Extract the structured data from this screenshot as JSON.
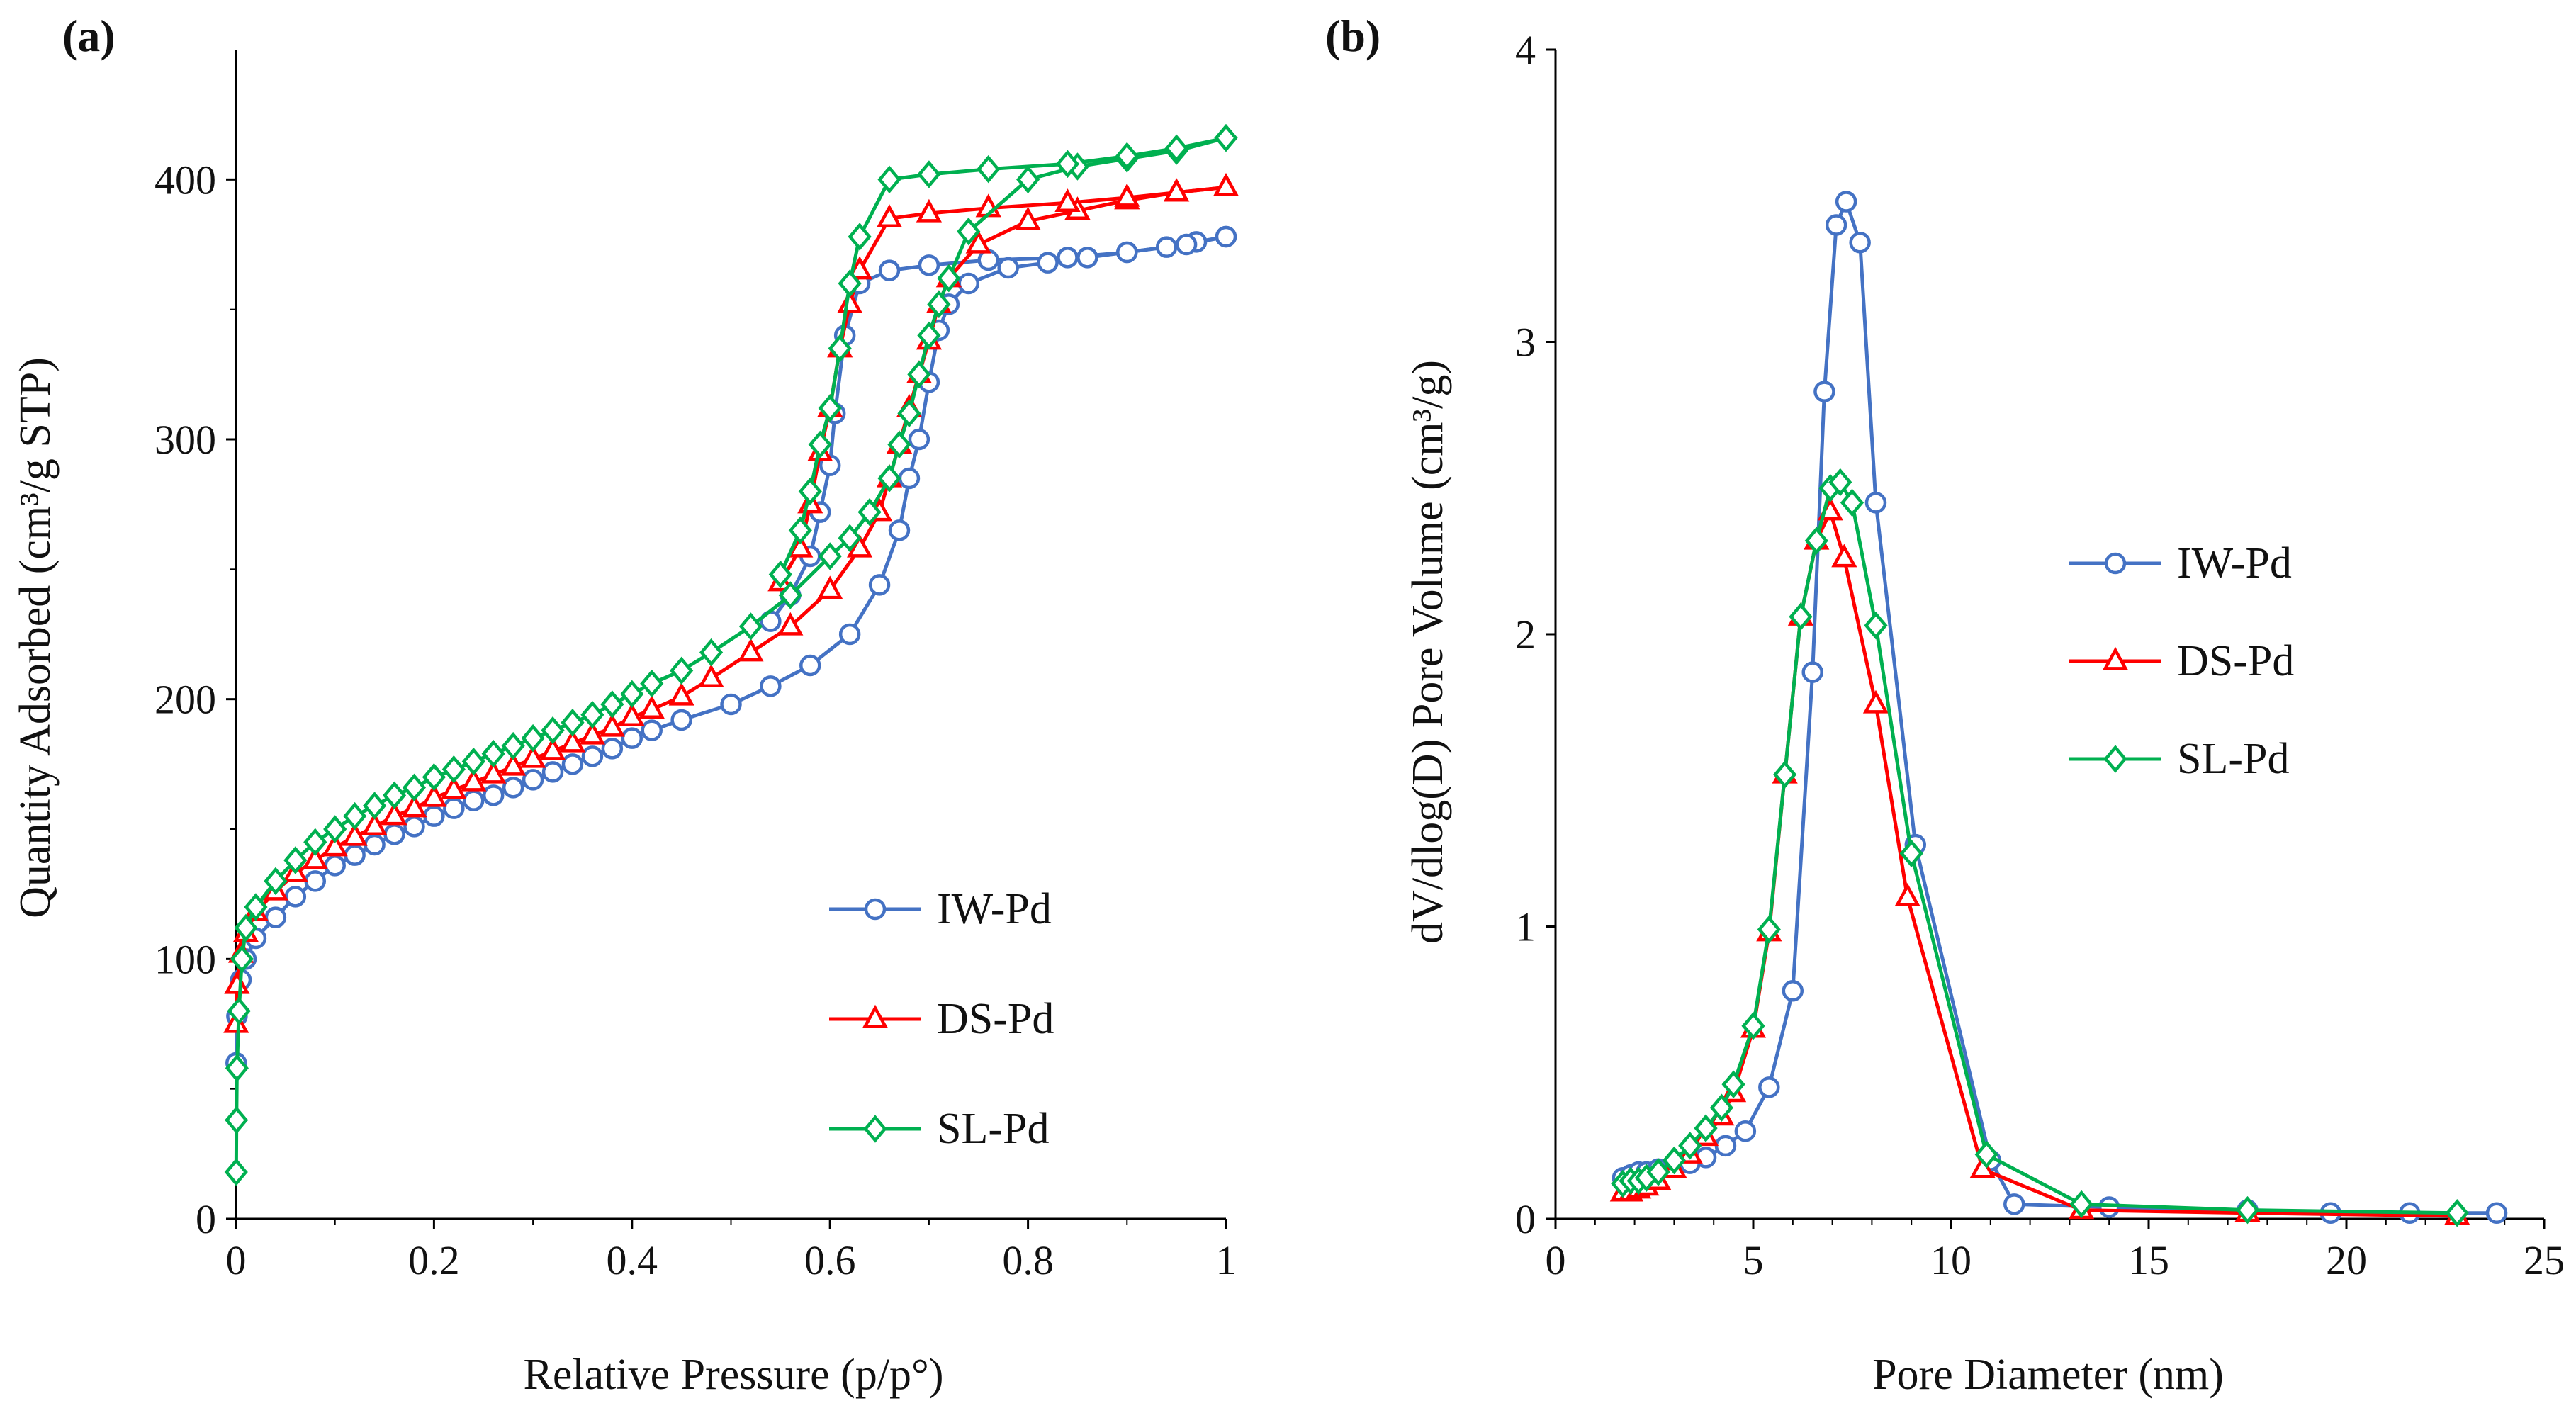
{
  "colors": {
    "IW": "#4472C4",
    "DS": "#FF0000",
    "SL": "#00B050",
    "axis": "#000000"
  },
  "chart_data": [
    {
      "type": "line",
      "panel_label": "(a)",
      "title": "",
      "xlabel": "Relative Pressure (p/p°)",
      "ylabel": "Quantity Adsorbed (cm³/g STP)",
      "xlim": [
        0,
        1
      ],
      "ylim": [
        0,
        450
      ],
      "xticks": [
        0,
        0.2,
        0.4,
        0.6,
        0.8,
        1
      ],
      "xtick_labels": [
        "0",
        "0.2",
        "0.4",
        "0.6",
        "0.8",
        "1"
      ],
      "yticks": [
        0,
        100,
        200,
        300,
        400
      ],
      "ytick_labels": [
        "0",
        "100",
        "200",
        "300",
        "400"
      ],
      "legend_position": "bottom-right",
      "series": [
        {
          "name": "IW-Pd",
          "color_key": "IW",
          "marker": "circle",
          "adsorption": [
            [
              0.0002,
              60
            ],
            [
              0.001,
              78
            ],
            [
              0.005,
              92
            ],
            [
              0.01,
              100
            ],
            [
              0.02,
              108
            ],
            [
              0.04,
              116
            ],
            [
              0.06,
              124
            ],
            [
              0.08,
              130
            ],
            [
              0.1,
              136
            ],
            [
              0.12,
              140
            ],
            [
              0.14,
              144
            ],
            [
              0.16,
              148
            ],
            [
              0.18,
              151
            ],
            [
              0.2,
              155
            ],
            [
              0.22,
              158
            ],
            [
              0.24,
              161
            ],
            [
              0.26,
              163
            ],
            [
              0.28,
              166
            ],
            [
              0.3,
              169
            ],
            [
              0.32,
              172
            ],
            [
              0.34,
              175
            ],
            [
              0.36,
              178
            ],
            [
              0.38,
              181
            ],
            [
              0.4,
              185
            ],
            [
              0.42,
              188
            ],
            [
              0.45,
              192
            ],
            [
              0.5,
              198
            ],
            [
              0.54,
              205
            ],
            [
              0.58,
              213
            ],
            [
              0.62,
              225
            ],
            [
              0.65,
              244
            ],
            [
              0.67,
              265
            ],
            [
              0.68,
              285
            ],
            [
              0.69,
              300
            ],
            [
              0.7,
              322
            ],
            [
              0.71,
              342
            ],
            [
              0.72,
              352
            ],
            [
              0.74,
              360
            ],
            [
              0.78,
              366
            ],
            [
              0.82,
              368
            ],
            [
              0.86,
              370
            ],
            [
              0.9,
              372
            ],
            [
              0.94,
              374
            ],
            [
              0.97,
              376
            ],
            [
              1.0,
              378
            ]
          ],
          "desorption": [
            [
              1.0,
              378
            ],
            [
              0.96,
              375
            ],
            [
              0.9,
              372
            ],
            [
              0.84,
              370
            ],
            [
              0.76,
              369
            ],
            [
              0.7,
              367
            ],
            [
              0.66,
              365
            ],
            [
              0.63,
              360
            ],
            [
              0.615,
              340
            ],
            [
              0.605,
              310
            ],
            [
              0.6,
              290
            ],
            [
              0.59,
              272
            ],
            [
              0.58,
              255
            ],
            [
              0.56,
              240
            ],
            [
              0.54,
              230
            ]
          ]
        },
        {
          "name": "DS-Pd",
          "color_key": "DS",
          "marker": "triangle",
          "adsorption": [
            [
              0.0002,
              75
            ],
            [
              0.001,
              90
            ],
            [
              0.005,
              102
            ],
            [
              0.01,
              110
            ],
            [
              0.02,
              118
            ],
            [
              0.04,
              126
            ],
            [
              0.06,
              133
            ],
            [
              0.08,
              138
            ],
            [
              0.1,
              143
            ],
            [
              0.12,
              147
            ],
            [
              0.14,
              151
            ],
            [
              0.16,
              155
            ],
            [
              0.18,
              158
            ],
            [
              0.2,
              162
            ],
            [
              0.22,
              165
            ],
            [
              0.24,
              168
            ],
            [
              0.26,
              171
            ],
            [
              0.28,
              174
            ],
            [
              0.3,
              177
            ],
            [
              0.32,
              180
            ],
            [
              0.34,
              183
            ],
            [
              0.36,
              186
            ],
            [
              0.38,
              189
            ],
            [
              0.4,
              193
            ],
            [
              0.42,
              196
            ],
            [
              0.45,
              201
            ],
            [
              0.48,
              208
            ],
            [
              0.52,
              218
            ],
            [
              0.56,
              228
            ],
            [
              0.6,
              242
            ],
            [
              0.63,
              258
            ],
            [
              0.65,
              272
            ],
            [
              0.66,
              285
            ],
            [
              0.67,
              298
            ],
            [
              0.68,
              312
            ],
            [
              0.69,
              325
            ],
            [
              0.7,
              338
            ],
            [
              0.71,
              352
            ],
            [
              0.72,
              362
            ],
            [
              0.75,
              375
            ],
            [
              0.8,
              384
            ],
            [
              0.85,
              388
            ],
            [
              0.9,
              392
            ],
            [
              0.95,
              395
            ],
            [
              1.0,
              397
            ]
          ],
          "desorption": [
            [
              1.0,
              397
            ],
            [
              0.95,
              395
            ],
            [
              0.9,
              393
            ],
            [
              0.84,
              391
            ],
            [
              0.76,
              389
            ],
            [
              0.7,
              387
            ],
            [
              0.66,
              385
            ],
            [
              0.63,
              365
            ],
            [
              0.62,
              352
            ],
            [
              0.61,
              335
            ],
            [
              0.6,
              312
            ],
            [
              0.59,
              295
            ],
            [
              0.58,
              275
            ],
            [
              0.57,
              258
            ],
            [
              0.55,
              245
            ]
          ]
        },
        {
          "name": "SL-Pd",
          "color_key": "SL",
          "marker": "diamond",
          "adsorption": [
            [
              0.0002,
              18
            ],
            [
              0.0005,
              38
            ],
            [
              0.001,
              58
            ],
            [
              0.003,
              80
            ],
            [
              0.006,
              100
            ],
            [
              0.01,
              112
            ],
            [
              0.02,
              120
            ],
            [
              0.04,
              130
            ],
            [
              0.06,
              138
            ],
            [
              0.08,
              145
            ],
            [
              0.1,
              150
            ],
            [
              0.12,
              155
            ],
            [
              0.14,
              159
            ],
            [
              0.16,
              163
            ],
            [
              0.18,
              166
            ],
            [
              0.2,
              170
            ],
            [
              0.22,
              173
            ],
            [
              0.24,
              176
            ],
            [
              0.26,
              179
            ],
            [
              0.28,
              182
            ],
            [
              0.3,
              185
            ],
            [
              0.32,
              188
            ],
            [
              0.34,
              191
            ],
            [
              0.36,
              194
            ],
            [
              0.38,
              198
            ],
            [
              0.4,
              202
            ],
            [
              0.42,
              206
            ],
            [
              0.45,
              211
            ],
            [
              0.48,
              218
            ],
            [
              0.52,
              228
            ],
            [
              0.56,
              240
            ],
            [
              0.6,
              255
            ],
            [
              0.62,
              262
            ],
            [
              0.64,
              272
            ],
            [
              0.66,
              285
            ],
            [
              0.67,
              298
            ],
            [
              0.68,
              310
            ],
            [
              0.69,
              325
            ],
            [
              0.7,
              340
            ],
            [
              0.71,
              352
            ],
            [
              0.72,
              362
            ],
            [
              0.74,
              380
            ],
            [
              0.8,
              400
            ],
            [
              0.85,
              405
            ],
            [
              0.9,
              408
            ],
            [
              0.95,
              411
            ],
            [
              1.0,
              416
            ]
          ],
          "desorption": [
            [
              1.0,
              416
            ],
            [
              0.95,
              412
            ],
            [
              0.9,
              409
            ],
            [
              0.84,
              406
            ],
            [
              0.76,
              404
            ],
            [
              0.7,
              402
            ],
            [
              0.66,
              400
            ],
            [
              0.63,
              378
            ],
            [
              0.62,
              360
            ],
            [
              0.61,
              335
            ],
            [
              0.6,
              312
            ],
            [
              0.59,
              298
            ],
            [
              0.58,
              280
            ],
            [
              0.57,
              265
            ],
            [
              0.55,
              248
            ]
          ]
        }
      ]
    },
    {
      "type": "line",
      "panel_label": "(b)",
      "title": "",
      "xlabel": "Pore Diameter (nm)",
      "ylabel": "dV/dlog(D) Pore Volume (cm³/g)",
      "xlim": [
        0,
        25
      ],
      "ylim": [
        0,
        4
      ],
      "xticks": [
        0,
        5,
        10,
        15,
        20,
        25
      ],
      "xtick_labels": [
        "0",
        "5",
        "10",
        "15",
        "20",
        "25"
      ],
      "yticks": [
        0,
        1,
        2,
        3,
        4
      ],
      "ytick_labels": [
        "0",
        "1",
        "2",
        "3",
        "4"
      ],
      "legend_position": "center-right",
      "series": [
        {
          "name": "IW-Pd",
          "color_key": "IW",
          "marker": "circle",
          "points": [
            [
              1.7,
              0.14
            ],
            [
              1.9,
              0.15
            ],
            [
              2.1,
              0.16
            ],
            [
              2.3,
              0.16
            ],
            [
              2.6,
              0.17
            ],
            [
              3.0,
              0.18
            ],
            [
              3.4,
              0.19
            ],
            [
              3.8,
              0.21
            ],
            [
              4.3,
              0.25
            ],
            [
              4.8,
              0.3
            ],
            [
              5.4,
              0.45
            ],
            [
              6.0,
              0.78
            ],
            [
              6.5,
              1.87
            ],
            [
              6.8,
              2.83
            ],
            [
              7.1,
              3.4
            ],
            [
              7.35,
              3.48
            ],
            [
              7.7,
              3.34
            ],
            [
              8.1,
              2.45
            ],
            [
              9.1,
              1.28
            ],
            [
              11.0,
              0.2
            ],
            [
              11.6,
              0.05
            ],
            [
              14.0,
              0.04
            ],
            [
              17.5,
              0.03
            ],
            [
              19.6,
              0.02
            ],
            [
              21.6,
              0.02
            ],
            [
              23.8,
              0.02
            ]
          ]
        },
        {
          "name": "DS-Pd",
          "color_key": "DS",
          "marker": "triangle",
          "points": [
            [
              1.7,
              0.09
            ],
            [
              1.9,
              0.09
            ],
            [
              2.1,
              0.1
            ],
            [
              2.3,
              0.11
            ],
            [
              2.6,
              0.13
            ],
            [
              3.0,
              0.17
            ],
            [
              3.4,
              0.22
            ],
            [
              3.8,
              0.28
            ],
            [
              4.2,
              0.35
            ],
            [
              4.5,
              0.43
            ],
            [
              5.0,
              0.65
            ],
            [
              5.4,
              0.98
            ],
            [
              5.8,
              1.52
            ],
            [
              6.2,
              2.06
            ],
            [
              6.6,
              2.32
            ],
            [
              6.95,
              2.42
            ],
            [
              7.3,
              2.26
            ],
            [
              8.1,
              1.76
            ],
            [
              8.9,
              1.1
            ],
            [
              10.8,
              0.17
            ],
            [
              13.3,
              0.03
            ],
            [
              17.5,
              0.02
            ],
            [
              22.8,
              0.01
            ]
          ]
        },
        {
          "name": "SL-Pd",
          "color_key": "SL",
          "marker": "diamond",
          "points": [
            [
              1.7,
              0.12
            ],
            [
              1.9,
              0.13
            ],
            [
              2.1,
              0.13
            ],
            [
              2.3,
              0.14
            ],
            [
              2.6,
              0.16
            ],
            [
              3.0,
              0.2
            ],
            [
              3.4,
              0.25
            ],
            [
              3.8,
              0.31
            ],
            [
              4.2,
              0.38
            ],
            [
              4.5,
              0.46
            ],
            [
              5.0,
              0.66
            ],
            [
              5.4,
              0.99
            ],
            [
              5.8,
              1.52
            ],
            [
              6.2,
              2.06
            ],
            [
              6.6,
              2.32
            ],
            [
              6.95,
              2.5
            ],
            [
              7.2,
              2.52
            ],
            [
              7.5,
              2.45
            ],
            [
              8.1,
              2.03
            ],
            [
              9.0,
              1.25
            ],
            [
              10.9,
              0.22
            ],
            [
              13.3,
              0.05
            ],
            [
              17.5,
              0.03
            ],
            [
              22.8,
              0.02
            ]
          ]
        }
      ]
    }
  ]
}
